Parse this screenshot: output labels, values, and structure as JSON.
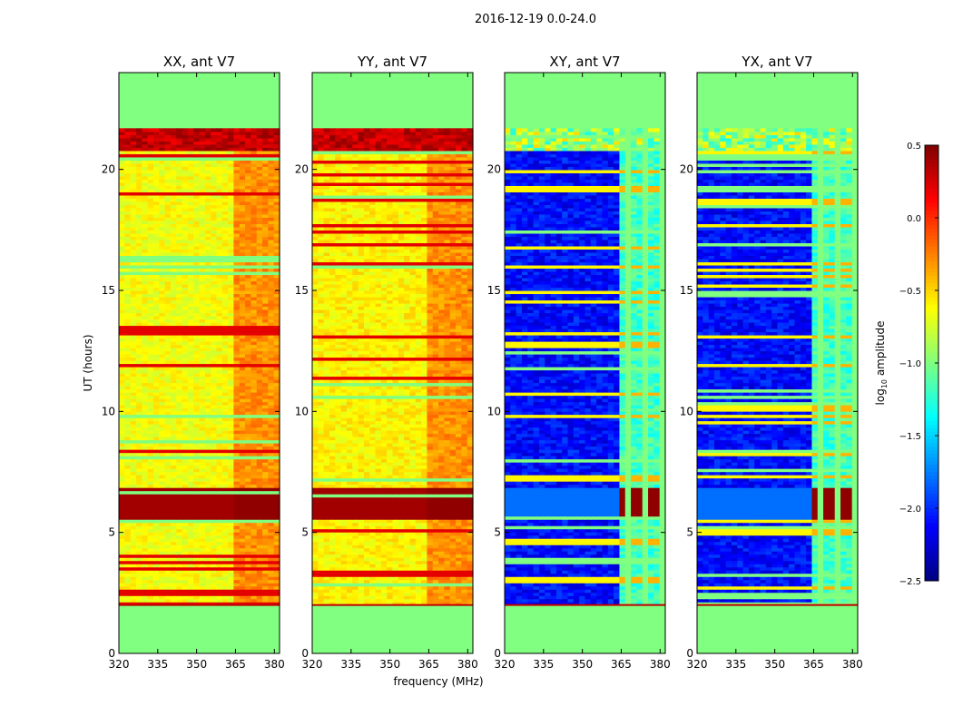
{
  "figure": {
    "suptitle": "2016-12-19 0.0-24.0",
    "xlabel": "frequency (MHz)",
    "ylabel": "UT (hours)",
    "colorbar_label_prefix": "log",
    "colorbar_label_sub": "10",
    "colorbar_label_suffix": " amplitude"
  },
  "chart_data": {
    "type": "heatmap",
    "x_range": [
      320,
      382
    ],
    "y_range": [
      0,
      24
    ],
    "x_ticks": [
      320,
      335,
      350,
      365,
      380
    ],
    "x_tick_labels": [
      "320",
      "335",
      "350",
      "365",
      "380"
    ],
    "y_ticks": [
      0,
      5,
      10,
      15,
      20
    ],
    "y_tick_labels": [
      "0",
      "5",
      "10",
      "15",
      "20"
    ],
    "color_range": [
      -2.5,
      0.5
    ],
    "colorbar_ticks": [
      0.5,
      0.0,
      -0.5,
      -1.0,
      -1.5,
      -2.0,
      -2.5
    ],
    "colorbar_tick_labels": [
      "0.5",
      "0.0",
      "−0.5",
      "−1.0",
      "−1.5",
      "−2.0",
      "−2.5"
    ],
    "colormap": "jet",
    "data_time_range": [
      2.0,
      21.7
    ],
    "fill_value": -1.0,
    "band_freq_range": [
      363,
      380
    ],
    "panels": [
      {
        "title": "XX, ant V7",
        "kind": "auto",
        "base": -0.65,
        "band": -0.3
      },
      {
        "title": "YY, ant V7",
        "kind": "auto",
        "base": -0.6,
        "band": -0.3
      },
      {
        "title": "XY, ant V7",
        "kind": "cross",
        "base": -2.1,
        "band": -1.2
      },
      {
        "title": "YX, ant V7",
        "kind": "cross",
        "base": -2.1,
        "band": -1.2
      }
    ]
  }
}
